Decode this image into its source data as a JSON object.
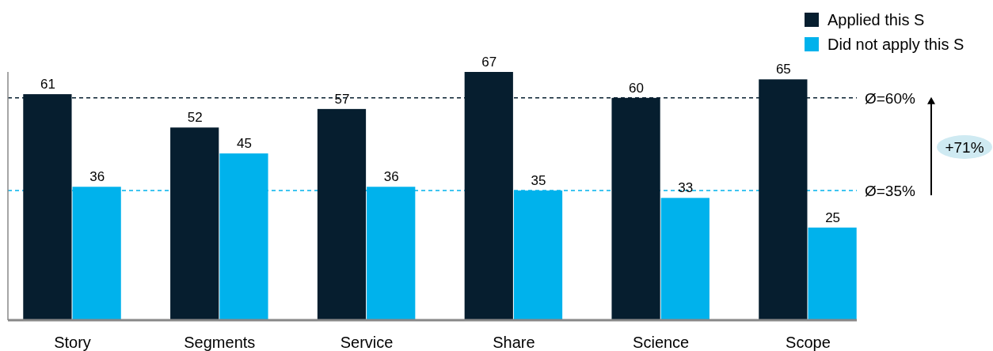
{
  "chart_data": {
    "type": "bar",
    "categories": [
      "Story",
      "Segments",
      "Service",
      "Share",
      "Science",
      "Scope"
    ],
    "series": [
      {
        "name": "Applied this S",
        "color": "#061e2f",
        "values": [
          61,
          52,
          57,
          67,
          60,
          65
        ]
      },
      {
        "name": "Did not apply this S",
        "color": "#00b2ec",
        "values": [
          36,
          45,
          36,
          35,
          33,
          25
        ]
      }
    ],
    "ylim": [
      0,
      67
    ],
    "tick_labels": "x",
    "data_labels": true,
    "legend": "top right",
    "ref_lines": [
      {
        "axis": "y",
        "value": 60,
        "label": "Ø=60%",
        "color": "#061e2f",
        "line_style": "dashed"
      },
      {
        "axis": "y",
        "value": 35,
        "label": "Ø=35%",
        "color": "#00b2ec",
        "line_style": "dashed"
      }
    ],
    "annotations": [
      "+71%"
    ]
  }
}
